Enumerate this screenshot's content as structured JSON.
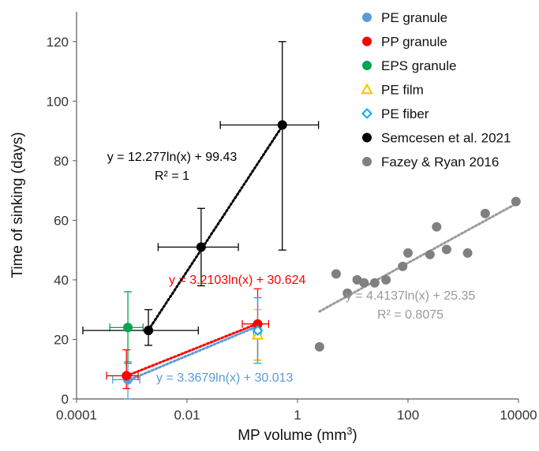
{
  "chart_data": {
    "type": "scatter",
    "xscale": "log",
    "xlim": [
      0.0001,
      10000
    ],
    "ylim": [
      0,
      130
    ],
    "xticks": [
      "0.0001",
      "0.01",
      "1",
      "100",
      "10000"
    ],
    "yticks": [
      "0",
      "20",
      "40",
      "60",
      "80",
      "100",
      "120"
    ],
    "xlabel": "MP volume (mm",
    "xlabel_sup": "3",
    "xlabel_end": ")",
    "ylabel": "Time of sinking (days)",
    "grid": false,
    "legend_position": "top-right",
    "series": [
      {
        "name": "PE granule",
        "marker": "circle",
        "color": "#5b9bd5",
        "points": [
          {
            "x": 0.00085,
            "y": 6.5,
            "xerr": [
              0.00045,
              0.0014
            ],
            "yerr": [
              0,
              12.5
            ]
          }
        ]
      },
      {
        "name": "PP granule",
        "marker": "circle",
        "color": "#ff0000",
        "points": [
          {
            "x": 0.0008,
            "y": 7.8,
            "xerr": [
              0.00035,
              0.0013
            ],
            "yerr": [
              3.5,
              16.5
            ]
          },
          {
            "x": 0.19,
            "y": 25.2,
            "xerr": [
              0.1,
              0.3
            ],
            "yerr": [
              13,
              37
            ]
          }
        ]
      },
      {
        "name": "EPS granule",
        "marker": "circle",
        "color": "#00a550",
        "points": [
          {
            "x": 0.00085,
            "y": 24,
            "xerr": [
              0.0004,
              0.0016
            ],
            "yerr": [
              12,
              36
            ]
          }
        ]
      },
      {
        "name": "PE film",
        "marker": "triangle-open",
        "color": "#ffc000",
        "points": [
          {
            "x": 0.19,
            "y": 21.5,
            "xerr": [
              0.16,
              0.22
            ],
            "yerr": [
              13,
              30
            ]
          }
        ]
      },
      {
        "name": "PE fiber",
        "marker": "diamond-open",
        "color": "#00b0f0",
        "points": [
          {
            "x": 0.19,
            "y": 23,
            "xerr": [
              0.16,
              0.22
            ],
            "yerr": [
              12,
              34
            ]
          }
        ]
      },
      {
        "name": "Semcesen et al. 2021",
        "marker": "circle",
        "color": "#000000",
        "points": [
          {
            "x": 0.002,
            "y": 23,
            "xerr": [
              0.00013,
              0.016
            ],
            "yerr": [
              18,
              30
            ]
          },
          {
            "x": 0.018,
            "y": 51,
            "xerr": [
              0.003,
              0.085
            ],
            "yerr": [
              38,
              64
            ]
          },
          {
            "x": 0.53,
            "y": 92,
            "xerr": [
              0.04,
              2.4
            ],
            "yerr": [
              50,
              120
            ]
          }
        ]
      },
      {
        "name": "Fazey & Ryan 2016",
        "marker": "circle",
        "color": "#808080",
        "points": [
          {
            "x": 2.5,
            "y": 17.5
          },
          {
            "x": 5,
            "y": 42
          },
          {
            "x": 8,
            "y": 35.5
          },
          {
            "x": 12,
            "y": 40
          },
          {
            "x": 16,
            "y": 39
          },
          {
            "x": 25,
            "y": 39
          },
          {
            "x": 40,
            "y": 40
          },
          {
            "x": 80,
            "y": 44.5
          },
          {
            "x": 100,
            "y": 49
          },
          {
            "x": 250,
            "y": 48.5
          },
          {
            "x": 330,
            "y": 57.8
          },
          {
            "x": 500,
            "y": 50.2
          },
          {
            "x": 1200,
            "y": 49
          },
          {
            "x": 2500,
            "y": 62.3
          },
          {
            "x": 9000,
            "y": 66.3
          }
        ]
      }
    ],
    "trendlines": [
      {
        "series": "Semcesen et al. 2021",
        "color": "#000000",
        "a": 12.277,
        "b": 99.43,
        "x_range": [
          0.002,
          0.53
        ],
        "label": "y = 12.277ln(x) + 99.43",
        "r2_label": "R² = 1"
      },
      {
        "series": "PP granule",
        "color": "#ff0000",
        "a": 3.2103,
        "b": 30.624,
        "x_range": [
          0.0008,
          0.19
        ],
        "label": "y = 3.2103ln(x) + 30.624",
        "r2_label": ""
      },
      {
        "series": "PE granule",
        "color": "#5b9bd5",
        "a": 3.3679,
        "b": 30.013,
        "x_range": [
          0.0008,
          0.19
        ],
        "label": "y = 3.3679ln(x) + 30.013",
        "r2_label": ""
      },
      {
        "series": "Fazey & Ryan 2016",
        "color": "#999999",
        "a": 4.4137,
        "b": 25.35,
        "x_range": [
          2.5,
          9000
        ],
        "label": "y = 4.4137ln(x) + 25.35",
        "r2_label": "R² = 0.8075"
      }
    ]
  }
}
